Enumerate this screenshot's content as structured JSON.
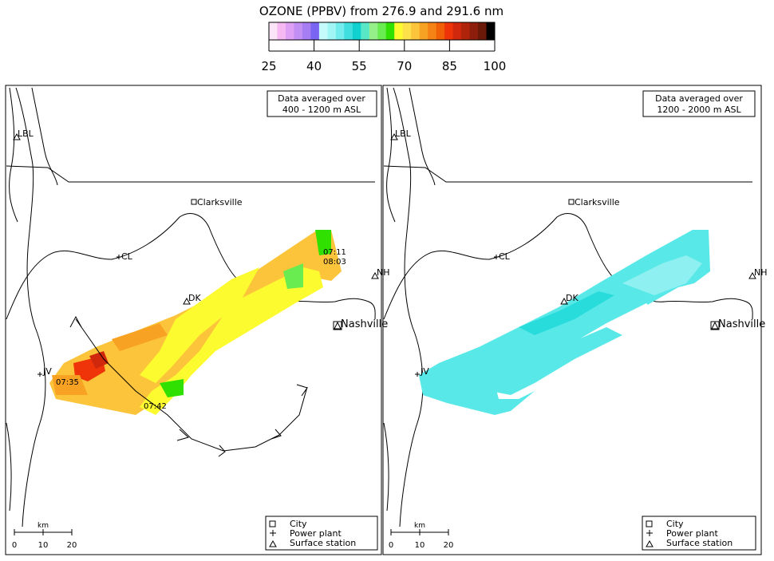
{
  "title": "OZONE (PPBV) from 276.9 and 291.6 nm",
  "colorbar": {
    "colors": [
      "#fbe4f6",
      "#f6b8f2",
      "#dda0f4",
      "#c28ff4",
      "#a67df2",
      "#7a64f2",
      "#c6fbfb",
      "#a1f5f5",
      "#72ecec",
      "#40dede",
      "#10d0d0",
      "#58e8c8",
      "#96f08a",
      "#68ec50",
      "#30e000",
      "#fbfb30",
      "#fce14a",
      "#fcc43a",
      "#f8a224",
      "#f58214",
      "#f05f06",
      "#ee3408",
      "#d0280c",
      "#b0240c",
      "#8e1e0c",
      "#6a1808",
      "#000000"
    ],
    "ticks": [
      "25",
      "40",
      "55",
      "70",
      "85",
      "100"
    ]
  },
  "maps": [
    {
      "id": "left",
      "box": [
        "Data averaged over",
        "400 - 1200 m ASL"
      ],
      "places": {
        "lbl": "LBL",
        "clarksville": "Clarksville",
        "cl": "CL",
        "dk": "DK",
        "nh": "NH",
        "nashville": "Nashville",
        "jv": "JV"
      },
      "times": [
        "07:11",
        "08:03",
        "07:35",
        "07:42"
      ],
      "scale": {
        "unit": "km",
        "ticks": [
          "0",
          "10",
          "20"
        ]
      },
      "legend": [
        "City",
        "Power plant",
        "Surface station"
      ]
    },
    {
      "id": "right",
      "box": [
        "Data averaged over",
        "1200 - 2000 m ASL"
      ],
      "places": {
        "lbl": "LBL",
        "clarksville": "Clarksville",
        "cl": "CL",
        "dk": "DK",
        "nh": "NH",
        "nashville": "Nashville",
        "jv": "JV"
      },
      "scale": {
        "unit": "km",
        "ticks": [
          "0",
          "10",
          "20"
        ]
      },
      "legend": [
        "City",
        "Power plant",
        "Surface station"
      ]
    }
  ]
}
